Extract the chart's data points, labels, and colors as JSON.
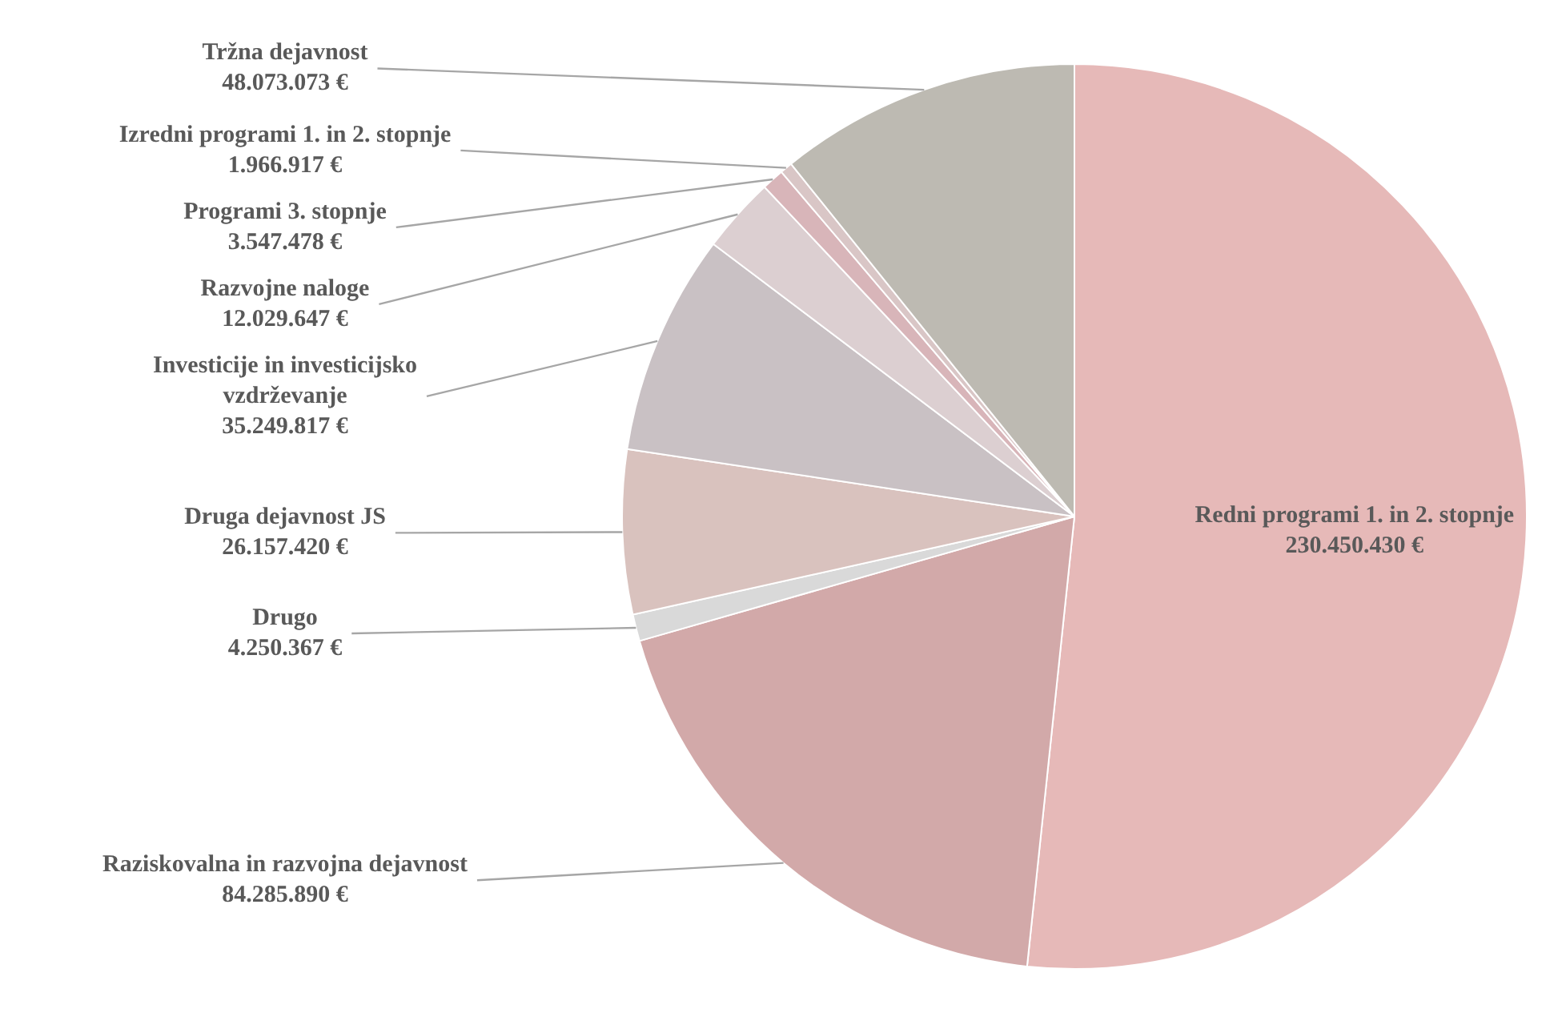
{
  "chart_data": {
    "type": "pie",
    "categories": [
      "Redni programi 1. in 2. stopnje",
      "Raziskovalna in razvojna dejavnost",
      "Drugo",
      "Druga dejavnost JS",
      "Investicije in investicijsko vzdrževanje",
      "Razvojne naloge",
      "Programi 3. stopnje",
      "Izredni programi 1. in 2. stopnje",
      "Tržna dejavnost"
    ],
    "values": [
      230450430,
      84285890,
      4250367,
      26157420,
      35249817,
      12029647,
      3547478,
      1966917,
      48073073
    ],
    "value_labels": [
      "230.450.430 €",
      "84.285.890 €",
      "4.250.367 €",
      "26.157.420 €",
      "35.249.817 €",
      "12.029.647 €",
      "3.547.478 €",
      "1.966.917 €",
      "48.073.073 €"
    ],
    "colors": [
      "#e6b9b8",
      "#d2a9a9",
      "#d9d9d9",
      "#d9c2be",
      "#c9c1c4",
      "#dccfd1",
      "#d8b5b9",
      "#d9c6c6",
      "#bdbab2"
    ],
    "legend": false
  }
}
